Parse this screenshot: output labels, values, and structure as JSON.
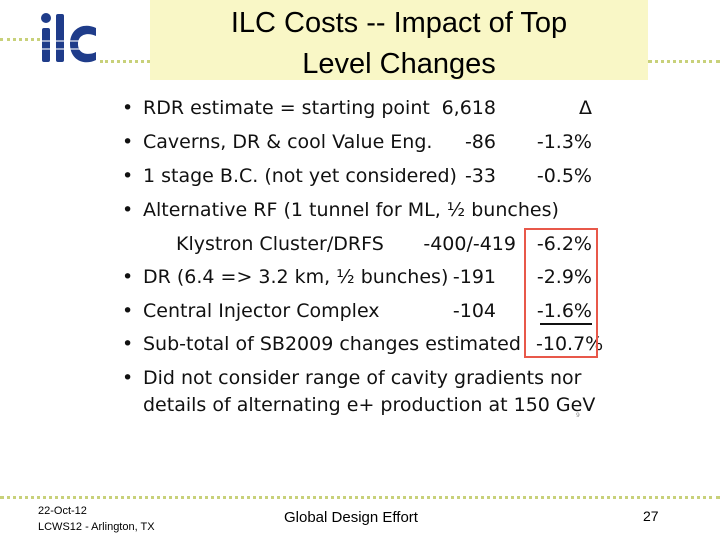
{
  "slide": {
    "title_line1": "ILC Costs -- Impact of Top",
    "title_line2": "Level Changes",
    "logo_text": "ilc",
    "accent_color": "#c8d17a",
    "title_bg": "#f9f7c6"
  },
  "rows": [
    {
      "bullet": "•",
      "text": "RDR estimate = starting point",
      "value": "6,618",
      "pct": "Δ"
    },
    {
      "bullet": "•",
      "text": "Caverns, DR & cool Value Eng.",
      "value": "-86",
      "pct": "-1.3%"
    },
    {
      "bullet": "•",
      "text": "1 stage B.C. (not yet considered)",
      "value": "-33",
      "pct": "-0.5%"
    },
    {
      "bullet": "•",
      "text": "Alternative RF (1 tunnel for ML, ½ bunches)",
      "value": "",
      "pct": ""
    },
    {
      "bullet": "",
      "text": "Klystron Cluster/DRFS",
      "value": "-400/-419",
      "pct": "-6.2%"
    },
    {
      "bullet": "•",
      "text": "DR (6.4 => 3.2 km, ½ bunches)",
      "value": "-191",
      "pct": "-2.9%"
    },
    {
      "bullet": "•",
      "text": "Central Injector Complex",
      "value": "-104",
      "pct": "-1.6%"
    },
    {
      "bullet": "•",
      "text": "Sub-total of SB2009 changes estimated",
      "value": "",
      "pct": "-10.7%"
    },
    {
      "bullet": "•",
      "text": "Did not consider range of cavity gradients nor",
      "value": "",
      "pct": ""
    },
    {
      "bullet": "",
      "text": "details of alternating e+ production at 150 GeV",
      "value": "",
      "pct": ""
    }
  ],
  "footer": {
    "date": "22-Oct-12",
    "venue": "LCWS12 - Arlington, TX",
    "center": "Global Design Effort",
    "page": "27"
  },
  "tiny_mark": "9"
}
